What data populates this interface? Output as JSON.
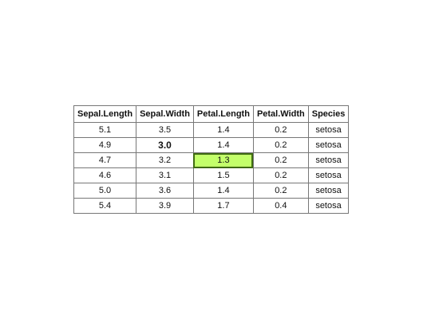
{
  "table": {
    "headers": [
      "Sepal.Length",
      "Sepal.Width",
      "Petal.Length",
      "Petal.Width",
      "Species"
    ],
    "rows": [
      [
        "5.1",
        "3.5",
        "1.4",
        "0.2",
        "setosa"
      ],
      [
        "4.9",
        "3.0",
        "1.4",
        "0.2",
        "setosa"
      ],
      [
        "4.7",
        "3.2",
        "1.3",
        "0.2",
        "setosa"
      ],
      [
        "4.6",
        "3.1",
        "1.5",
        "0.2",
        "setosa"
      ],
      [
        "5.0",
        "3.6",
        "1.4",
        "0.2",
        "setosa"
      ],
      [
        "5.4",
        "3.9",
        "1.7",
        "0.4",
        "setosa"
      ]
    ],
    "emphasis": {
      "bold_cell": {
        "row": 1,
        "col": 1
      },
      "highlight_cell": {
        "row": 2,
        "col": 2,
        "color": "#c3ff6a",
        "border_color": "#3f6b12"
      }
    }
  }
}
